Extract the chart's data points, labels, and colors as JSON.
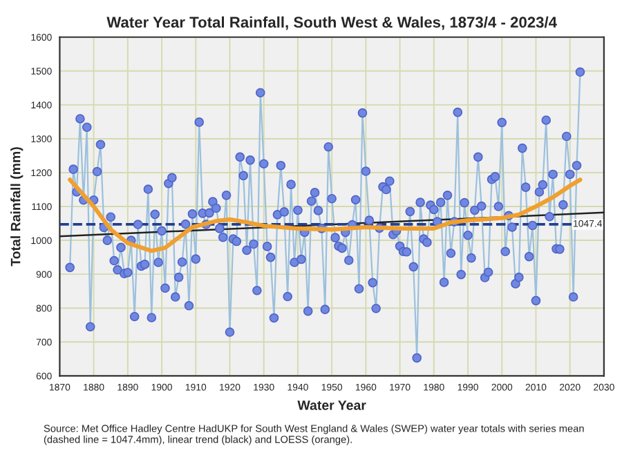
{
  "chart_data": {
    "type": "line",
    "title": "Water Year Total Rainfall, South West & Wales, 1873/4 - 2023/4",
    "xlabel": "Water Year",
    "ylabel": "Total Rainfall (mm)",
    "xlim": [
      1870,
      2030
    ],
    "xticks": [
      1870,
      1880,
      1890,
      1900,
      1910,
      1920,
      1930,
      1940,
      1950,
      1960,
      1970,
      1980,
      1990,
      2000,
      2010,
      2020,
      2030
    ],
    "ylim": [
      600,
      1600
    ],
    "yticks": [
      600,
      700,
      800,
      900,
      1000,
      1100,
      1200,
      1300,
      1400,
      1500,
      1600
    ],
    "grid": true,
    "series": [
      {
        "color": "#7088e0",
        "marker": "circle",
        "x": [
          1873,
          1874,
          1875,
          1876,
          1877,
          1878,
          1879,
          1880,
          1881,
          1882,
          1883,
          1884,
          1885,
          1886,
          1887,
          1888,
          1889,
          1890,
          1891,
          1892,
          1893,
          1894,
          1895,
          1896,
          1897,
          1898,
          1899,
          1900,
          1901,
          1902,
          1903,
          1904,
          1905,
          1906,
          1907,
          1908,
          1909,
          1910,
          1911,
          1912,
          1913,
          1914,
          1915,
          1916,
          1917,
          1918,
          1919,
          1920,
          1921,
          1922,
          1923,
          1924,
          1925,
          1926,
          1927,
          1928,
          1929,
          1930,
          1931,
          1932,
          1933,
          1934,
          1935,
          1936,
          1937,
          1938,
          1939,
          1940,
          1941,
          1942,
          1943,
          1944,
          1945,
          1946,
          1947,
          1948,
          1949,
          1950,
          1951,
          1952,
          1953,
          1954,
          1955,
          1956,
          1957,
          1958,
          1959,
          1960,
          1961,
          1962,
          1963,
          1964,
          1965,
          1966,
          1967,
          1968,
          1969,
          1970,
          1971,
          1972,
          1973,
          1974,
          1975,
          1976,
          1977,
          1978,
          1979,
          1980,
          1981,
          1982,
          1983,
          1984,
          1985,
          1986,
          1987,
          1988,
          1989,
          1990,
          1991,
          1992,
          1993,
          1994,
          1995,
          1996,
          1997,
          1998,
          1999,
          2000,
          2001,
          2002,
          2003,
          2004,
          2005,
          2006,
          2007,
          2008,
          2009,
          2010,
          2011,
          2012,
          2013,
          2014,
          2015,
          2016,
          2017,
          2018,
          2019,
          2020,
          2021,
          2022,
          2023
        ],
        "values": [
          920,
          1210,
          1143,
          1359,
          1119,
          1334,
          745,
          1119,
          1203,
          1283,
          1038,
          1000,
          1069,
          940,
          913,
          979,
          902,
          905,
          1000,
          775,
          1047,
          924,
          929,
          1151,
          772,
          1077,
          935,
          1028,
          859,
          1168,
          1185,
          833,
          891,
          936,
          1048,
          807,
          1078,
          945,
          1349,
          1080,
          1047,
          1081,
          1114,
          1095,
          1035,
          1009,
          1133,
          729,
          1004,
          997,
          1246,
          1191,
          971,
          1237,
          989,
          852,
          1436,
          1226,
          982,
          950,
          771,
          1076,
          1221,
          1084,
          834,
          1165,
          935,
          1089,
          944,
          1024,
          791,
          1116,
          1141,
          1088,
          1035,
          796,
          1276,
          1123,
          1008,
          983,
          977,
          1024,
          941,
          1046,
          1120,
          857,
          1376,
          1204,
          1059,
          875,
          799,
          1036,
          1158,
          1150,
          1175,
          1017,
          1028,
          983,
          967,
          966,
          1085,
          922,
          653,
          1112,
          1004,
          994,
          1104,
          1091,
          1055,
          1112,
          876,
          1133,
          962,
          1055,
          1378,
          899,
          1111,
          1015,
          948,
          1089,
          1246,
          1101,
          890,
          906,
          1180,
          1188,
          1100,
          1348,
          967,
          1073,
          1039,
          872,
          891,
          1272,
          1157,
          952,
          1044,
          822,
          1143,
          1164,
          1355,
          1070,
          1195,
          975,
          974,
          1105,
          1307,
          1195,
          833,
          1221,
          1497
        ]
      },
      {
        "color": "#222222",
        "marker": "none",
        "x": [
          1870,
          2030
        ],
        "values": [
          1012,
          1082
        ]
      },
      {
        "color": "#f0a030",
        "marker": "none",
        "x": [
          1873,
          1880,
          1885,
          1890,
          1897,
          1901,
          1909,
          1916,
          1920,
          1925,
          1930,
          1940,
          1950,
          1960,
          1970,
          1980,
          1985,
          1990,
          2000,
          2005,
          2010,
          2015,
          2020,
          2023
        ],
        "values": [
          1179,
          1100,
          1032,
          992,
          969,
          978,
          1039,
          1057,
          1062,
          1053,
          1043,
          1035,
          1032,
          1039,
          1035,
          1035,
          1053,
          1059,
          1066,
          1076,
          1100,
          1127,
          1161,
          1179
        ]
      }
    ],
    "ref_lines": [
      {
        "axis": "y",
        "value": 1047.4,
        "label": "1047.4",
        "color": "#1f3f8f",
        "line_style": "dashed"
      }
    ],
    "annotations": [
      "Source: Met Office Hadley Centre HadUKP for South West England & Wales (SWEP) water year totals with series mean (dashed line = 1047.4mm), linear trend (black) and LOESS (orange)."
    ]
  }
}
